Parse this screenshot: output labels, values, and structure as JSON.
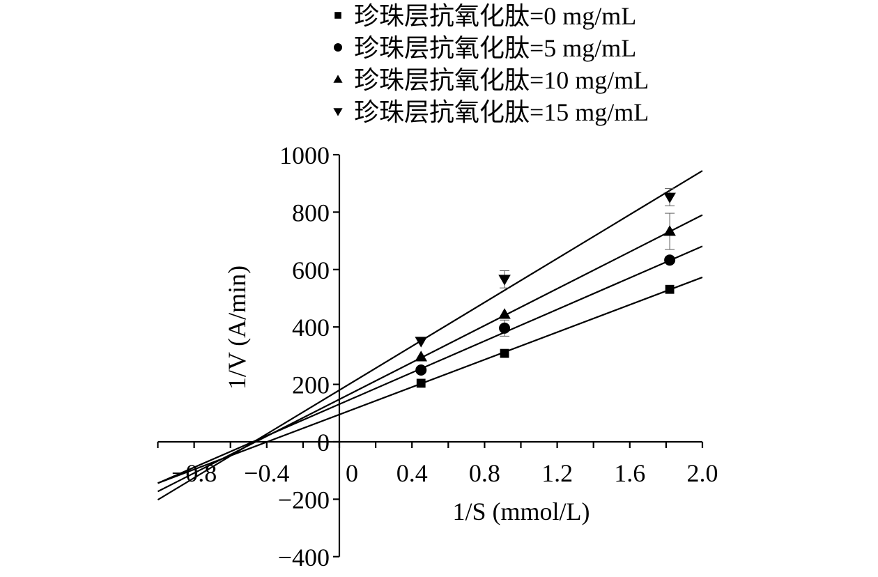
{
  "chart_data": {
    "type": "line",
    "title": "",
    "xlabel": "1/S (mmol/L)",
    "ylabel": "1/V (A/min)",
    "xlim": [
      -1.0,
      2.0
    ],
    "ylim": [
      -400,
      1000
    ],
    "x_ticks": [
      -0.8,
      -0.4,
      0,
      0.4,
      0.8,
      1.2,
      1.6,
      2.0
    ],
    "x_tick_labels": [
      "−0.8",
      "−0.4",
      "0",
      "0.4",
      "0.8",
      "1.2",
      "1.6",
      "2.0"
    ],
    "y_ticks": [
      -400,
      -200,
      0,
      200,
      400,
      600,
      800,
      1000
    ],
    "y_tick_labels": [
      "−400",
      "−200",
      "0",
      "200",
      "400",
      "600",
      "800",
      "1000"
    ],
    "legend_position": "top",
    "grid": false,
    "series": [
      {
        "name": "珍珠层抗氧化肽=0 mg/mL",
        "marker": "square",
        "x": [
          0.45,
          0.91,
          1.82
        ],
        "y": [
          204,
          308,
          531
        ],
        "err": [
          0,
          0,
          0
        ],
        "fit": {
          "intercept": 95,
          "slope": 239
        }
      },
      {
        "name": "珍珠层抗氧化肽=5 mg/mL",
        "marker": "circle",
        "x": [
          0.45,
          0.91,
          1.82
        ],
        "y": [
          250,
          396,
          633
        ],
        "err": [
          0,
          28,
          0
        ],
        "fit": {
          "intercept": 131,
          "slope": 275
        }
      },
      {
        "name": "珍珠层抗氧化肽=10 mg/mL",
        "marker": "triangle-up",
        "x": [
          0.45,
          0.91,
          1.82
        ],
        "y": [
          296,
          444,
          733
        ],
        "err": [
          0,
          0,
          63
        ],
        "fit": {
          "intercept": 148,
          "slope": 321
        }
      },
      {
        "name": "珍珠层抗氧化肽=15 mg/mL",
        "marker": "triangle-down",
        "x": [
          0.45,
          0.91,
          1.82
        ],
        "y": [
          350,
          566,
          852
        ],
        "err": [
          0,
          30,
          30
        ],
        "fit": {
          "intercept": 180,
          "slope": 382
        }
      }
    ]
  }
}
